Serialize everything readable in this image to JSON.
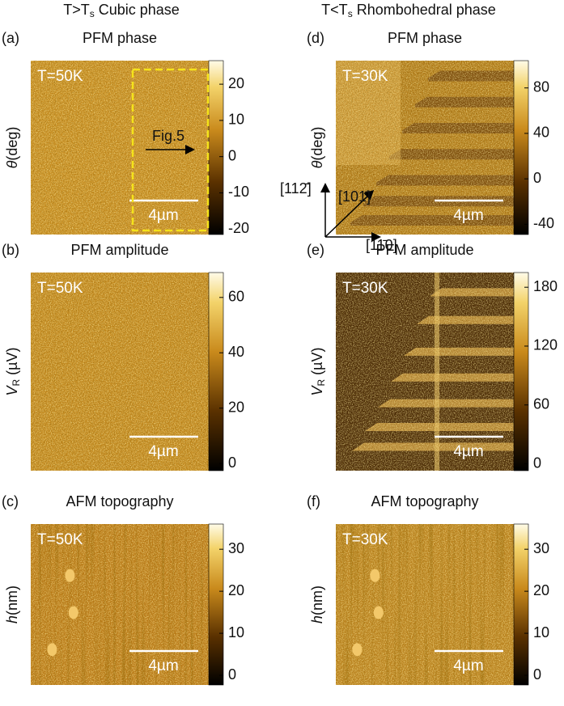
{
  "columns": [
    {
      "main": "T>T",
      "sub": "s",
      "rest": " Cubic phase"
    },
    {
      "main": "T<T",
      "sub": "s",
      "rest": " Rhombohedral phase"
    }
  ],
  "panels": [
    {
      "label": "(a)",
      "title": "PFM phase",
      "temperature": "T=50K",
      "ylabel": {
        "main": "θ",
        "rest": "(deg)"
      },
      "colorbar_lim": [
        -21.5,
        26.5
      ],
      "colorbar_ticks": [
        -20,
        -10,
        0,
        10,
        20
      ],
      "scale_bar": "4µm",
      "box_label": "Fig.5"
    },
    {
      "label": "(b)",
      "title": "PFM amplitude",
      "temperature": "T=50K",
      "ylabel": {
        "main": "V",
        "sub": "R",
        "rest": " (µV)"
      },
      "colorbar_lim": [
        -2.6,
        69
      ],
      "colorbar_ticks": [
        0,
        20,
        40,
        60
      ],
      "scale_bar": "4µm"
    },
    {
      "label": "(c)",
      "title": "AFM topography",
      "temperature": "T=50K",
      "ylabel": {
        "main": "h",
        "rest": "(nm)"
      },
      "colorbar_lim": [
        -2.3,
        36
      ],
      "colorbar_ticks": [
        0,
        10,
        20,
        30
      ],
      "scale_bar": "4µm"
    },
    {
      "label": "(d)",
      "title": "PFM phase",
      "temperature": "T=30K",
      "ylabel": {
        "main": "θ",
        "rest": "(deg)"
      },
      "colorbar_lim": [
        -49,
        104
      ],
      "colorbar_ticks": [
        -40,
        0,
        40,
        80
      ],
      "scale_bar": "4µm",
      "directions": [
        "[112̄]",
        "[101̄]",
        "[11̄0]"
      ]
    },
    {
      "label": "(e)",
      "title": "PFM amplitude",
      "temperature": "T=30K",
      "ylabel": {
        "main": "V",
        "sub": "R",
        "rest": " (µV)"
      },
      "colorbar_lim": [
        -7,
        195
      ],
      "colorbar_ticks": [
        0,
        60,
        120,
        180
      ],
      "scale_bar": "4µm"
    },
    {
      "label": "(f)",
      "title": "AFM topography",
      "temperature": "T=30K",
      "ylabel": {
        "main": "h",
        "rest": "(nm)"
      },
      "colorbar_lim": [
        -2.3,
        36
      ],
      "colorbar_ticks": [
        0,
        10,
        20,
        30
      ],
      "scale_bar": "4µm"
    }
  ]
}
